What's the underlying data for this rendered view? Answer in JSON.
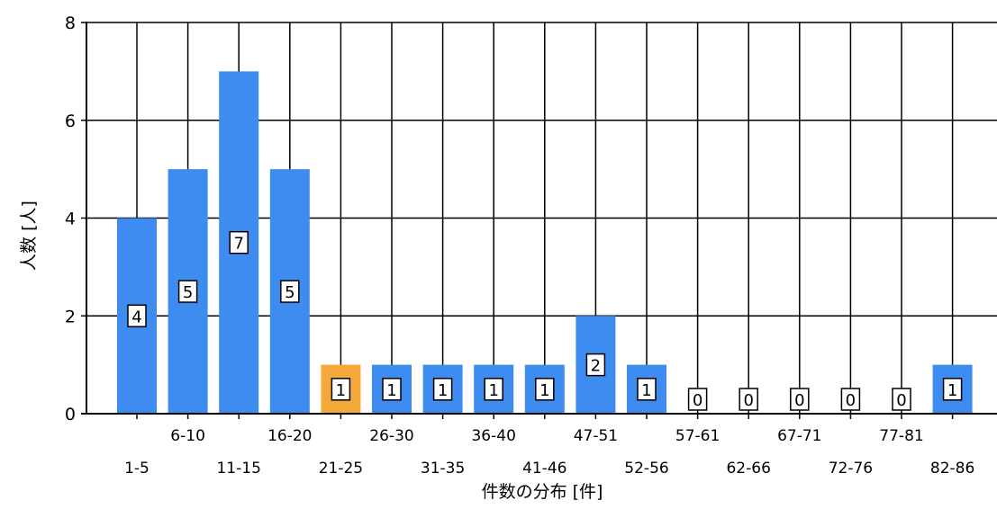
{
  "chart_data": {
    "type": "bar",
    "ylabel": "人数 [人]",
    "xlabel": "件数の分布 [件]",
    "ylim": [
      0,
      8
    ],
    "yticks": [
      0,
      2,
      4,
      6,
      8
    ],
    "grid": true,
    "categories": [
      "1-5",
      "6-10",
      "11-15",
      "16-20",
      "21-25",
      "26-30",
      "31-35",
      "36-40",
      "41-46",
      "47-51",
      "52-56",
      "57-61",
      "62-66",
      "67-71",
      "72-76",
      "77-81",
      "82-86"
    ],
    "values": [
      4,
      5,
      7,
      5,
      1,
      1,
      1,
      1,
      1,
      2,
      1,
      0,
      0,
      0,
      0,
      0,
      1
    ],
    "highlight_index": 4,
    "colors": {
      "bar": "#3f8cf0",
      "highlight": "#f5a93a",
      "grid": "#000000",
      "label_box": "#ffffff"
    }
  }
}
